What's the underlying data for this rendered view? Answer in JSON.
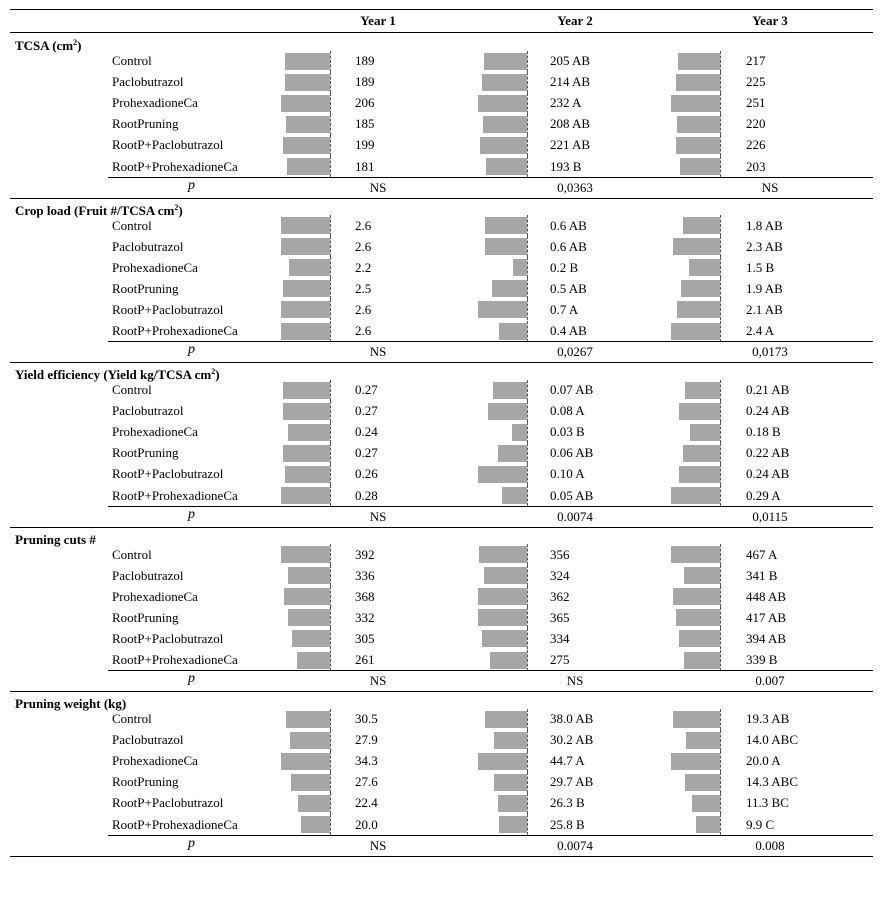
{
  "header": {
    "years": [
      "Year 1",
      "Year 2",
      "Year 3"
    ]
  },
  "sections": [
    {
      "title": "TCSA (cm",
      "title_sup": "2",
      "title_after": ")",
      "rows": [
        {
          "treatment": "Control",
          "values": [
            189,
            205,
            217
          ],
          "labels": [
            "189",
            "205 AB",
            "217"
          ]
        },
        {
          "treatment": "Paclobutrazol",
          "values": [
            189,
            214,
            225
          ],
          "labels": [
            "189",
            "214 AB",
            "225"
          ]
        },
        {
          "treatment": "ProhexadioneCa",
          "values": [
            206,
            232,
            251
          ],
          "labels": [
            "206",
            "232 A",
            "251"
          ]
        },
        {
          "treatment": "RootPruning",
          "values": [
            185,
            208,
            220
          ],
          "labels": [
            "185",
            "208 AB",
            "220"
          ]
        },
        {
          "treatment": "RootP+Paclobutrazol",
          "values": [
            199,
            221,
            226
          ],
          "labels": [
            "199",
            "221 AB",
            "226"
          ]
        },
        {
          "treatment": "RootP+ProhexadioneCa",
          "values": [
            181,
            193,
            203
          ],
          "labels": [
            "181",
            "193 B",
            "203"
          ]
        }
      ],
      "p_label": "p",
      "p_values": [
        "NS",
        "0,0363",
        "NS"
      ]
    },
    {
      "title": "Crop load (Fruit #/TCSA cm",
      "title_sup": "2",
      "title_after": ")",
      "rows": [
        {
          "treatment": "Control",
          "values": [
            2.6,
            0.6,
            1.8
          ],
          "labels": [
            "2.6",
            "0.6 AB",
            "1.8 AB"
          ]
        },
        {
          "treatment": "Paclobutrazol",
          "values": [
            2.6,
            0.6,
            2.3
          ],
          "labels": [
            "2.6",
            "0.6 AB",
            "2.3 AB"
          ]
        },
        {
          "treatment": "ProhexadioneCa",
          "values": [
            2.2,
            0.2,
            1.5
          ],
          "labels": [
            "2.2",
            "0.2 B",
            "1.5 B"
          ]
        },
        {
          "treatment": "RootPruning",
          "values": [
            2.5,
            0.5,
            1.9
          ],
          "labels": [
            "2.5",
            "0.5 AB",
            "1.9 AB"
          ]
        },
        {
          "treatment": "RootP+Paclobutrazol",
          "values": [
            2.6,
            0.7,
            2.1
          ],
          "labels": [
            "2.6",
            "0.7 A",
            "2.1 AB"
          ]
        },
        {
          "treatment": "RootP+ProhexadioneCa",
          "values": [
            2.6,
            0.4,
            2.4
          ],
          "labels": [
            "2.6",
            "0.4 AB",
            "2.4 A"
          ]
        }
      ],
      "p_label": "p",
      "p_values": [
        "NS",
        "0,0267",
        "0,0173"
      ]
    },
    {
      "title": "Yield efficiency (Yield kg/TCSA cm",
      "title_sup": "2",
      "title_after": ")",
      "rows": [
        {
          "treatment": "Control",
          "values": [
            0.27,
            0.07,
            0.21
          ],
          "labels": [
            "0.27",
            "0.07 AB",
            "0.21 AB"
          ]
        },
        {
          "treatment": "Paclobutrazol",
          "values": [
            0.27,
            0.08,
            0.24
          ],
          "labels": [
            "0.27",
            "0.08 A",
            "0.24 AB"
          ]
        },
        {
          "treatment": "ProhexadioneCa",
          "values": [
            0.24,
            0.03,
            0.18
          ],
          "labels": [
            "0.24",
            "0.03 B",
            "0.18 B"
          ]
        },
        {
          "treatment": "RootPruning",
          "values": [
            0.27,
            0.06,
            0.22
          ],
          "labels": [
            "0.27",
            "0.06 AB",
            "0.22 AB"
          ]
        },
        {
          "treatment": "RootP+Paclobutrazol",
          "values": [
            0.26,
            0.1,
            0.24
          ],
          "labels": [
            "0.26",
            "0.10 A",
            "0.24 AB"
          ]
        },
        {
          "treatment": "RootP+ProhexadioneCa",
          "values": [
            0.28,
            0.05,
            0.29
          ],
          "labels": [
            "0.28",
            "0.05 AB",
            "0.29 A"
          ]
        }
      ],
      "p_label": "p",
      "p_values": [
        "NS",
        "0.0074",
        "0,0115"
      ]
    },
    {
      "title": "Pruning cuts #",
      "title_sup": "",
      "title_after": "",
      "rows": [
        {
          "treatment": "Control",
          "values": [
            392,
            356,
            467
          ],
          "labels": [
            "392",
            "356",
            "467 A"
          ]
        },
        {
          "treatment": "Paclobutrazol",
          "values": [
            336,
            324,
            341
          ],
          "labels": [
            "336",
            "324",
            "341 B"
          ]
        },
        {
          "treatment": "ProhexadioneCa",
          "values": [
            368,
            362,
            448
          ],
          "labels": [
            "368",
            "362",
            "448 AB"
          ]
        },
        {
          "treatment": "RootPruning",
          "values": [
            332,
            365,
            417
          ],
          "labels": [
            "332",
            "365",
            "417 AB"
          ]
        },
        {
          "treatment": "RootP+Paclobutrazol",
          "values": [
            305,
            334,
            394
          ],
          "labels": [
            "305",
            "334",
            "394 AB"
          ]
        },
        {
          "treatment": "RootP+ProhexadioneCa",
          "values": [
            261,
            275,
            339
          ],
          "labels": [
            "261",
            "275",
            "339 B"
          ]
        }
      ],
      "p_label": "p",
      "p_values": [
        "NS",
        "NS",
        "0.007"
      ]
    },
    {
      "title": "Pruning weight (kg)",
      "title_sup": "",
      "title_after": "",
      "rows": [
        {
          "treatment": "Control",
          "values": [
            30.5,
            38.0,
            19.3
          ],
          "labels": [
            "30.5",
            "38.0 AB",
            "19.3 AB"
          ]
        },
        {
          "treatment": "Paclobutrazol",
          "values": [
            27.9,
            30.2,
            14.0
          ],
          "labels": [
            "27.9",
            "30.2 AB",
            "14.0 ABC"
          ]
        },
        {
          "treatment": "ProhexadioneCa",
          "values": [
            34.3,
            44.7,
            20.0
          ],
          "labels": [
            "34.3",
            "44.7 A",
            "20.0 A"
          ]
        },
        {
          "treatment": "RootPruning",
          "values": [
            27.6,
            29.7,
            14.3
          ],
          "labels": [
            "27.6",
            "29.7 AB",
            "14.3 ABC"
          ]
        },
        {
          "treatment": "RootP+Paclobutrazol",
          "values": [
            22.4,
            26.3,
            11.3
          ],
          "labels": [
            "22.4",
            "26.3 B",
            "11.3 BC"
          ]
        },
        {
          "treatment": "RootP+ProhexadioneCa",
          "values": [
            20.0,
            25.8,
            9.9
          ],
          "labels": [
            "20.0",
            "25.8 B",
            "9.9 C"
          ]
        }
      ],
      "p_label": "p",
      "p_values": [
        "NS",
        "0.0074",
        "0.008"
      ]
    }
  ],
  "colors": {
    "bar": "#a6a6a6",
    "text": "#000000",
    "rule": "#000000"
  }
}
